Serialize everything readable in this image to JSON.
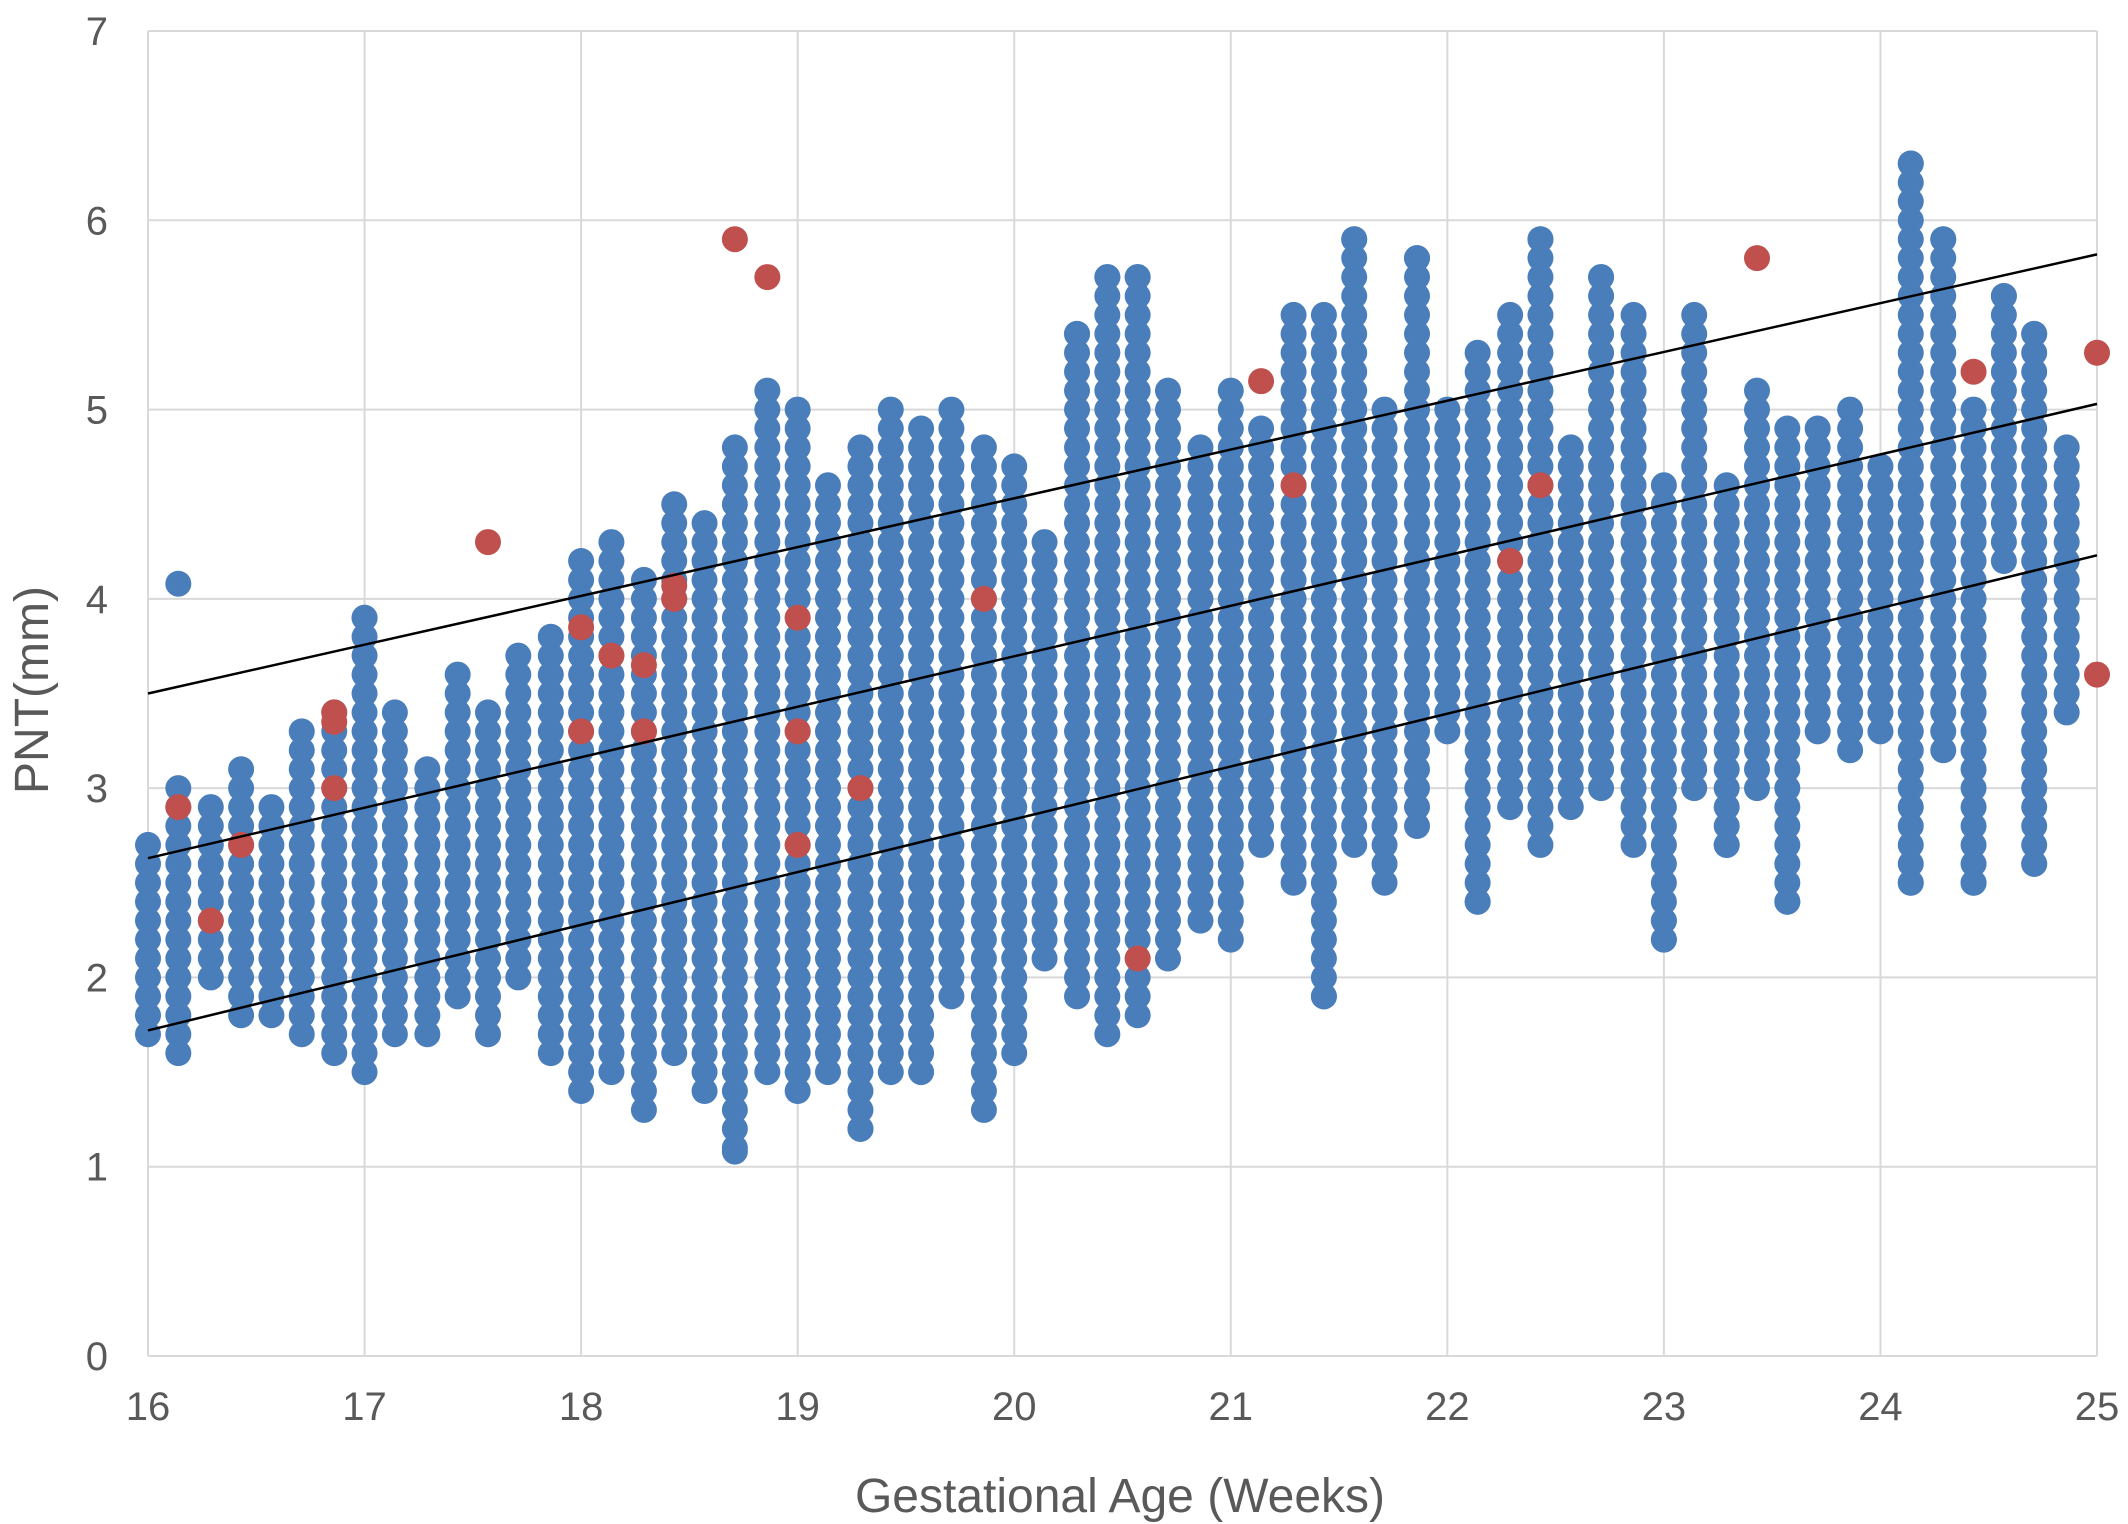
{
  "chart_data": {
    "type": "scatter",
    "title": "",
    "xlabel": "Gestational Age (Weeks)",
    "ylabel": "PNT(mm)",
    "xlim": [
      16,
      25
    ],
    "ylim": [
      0,
      7
    ],
    "xticks": [
      "16",
      "17",
      "18",
      "19",
      "20",
      "21",
      "22",
      "23",
      "24",
      "25"
    ],
    "yticks": [
      "0",
      "1",
      "2",
      "3",
      "4",
      "5",
      "6",
      "7"
    ],
    "grid": true,
    "legend": "none",
    "colors": {
      "main": "#4a7ebb",
      "highlight": "#c0504d",
      "line": "#000000",
      "grid": "#d9d9d9"
    },
    "reference_lines": [
      {
        "x": [
          16,
          25
        ],
        "y": [
          3.5,
          5.82
        ]
      },
      {
        "x": [
          16,
          25
        ],
        "y": [
          2.63,
          5.03
        ]
      },
      {
        "x": [
          16,
          25
        ],
        "y": [
          1.72,
          4.23
        ]
      }
    ],
    "column_ranges": [
      [
        16.0,
        1.7,
        2.7
      ],
      [
        16.14,
        1.6,
        3.0
      ],
      [
        16.29,
        2.0,
        2.9
      ],
      [
        16.43,
        1.8,
        3.1
      ],
      [
        16.57,
        1.8,
        2.9
      ],
      [
        16.71,
        1.7,
        3.3
      ],
      [
        16.86,
        1.6,
        3.4
      ],
      [
        17.0,
        1.5,
        3.9
      ],
      [
        17.14,
        1.7,
        3.4
      ],
      [
        17.29,
        1.7,
        3.1
      ],
      [
        17.43,
        1.9,
        3.6
      ],
      [
        17.57,
        1.7,
        3.4
      ],
      [
        17.71,
        2.0,
        3.7
      ],
      [
        17.86,
        1.6,
        3.8
      ],
      [
        18.0,
        1.4,
        4.2
      ],
      [
        18.14,
        1.5,
        4.3
      ],
      [
        18.29,
        1.3,
        4.1
      ],
      [
        18.43,
        1.6,
        4.5
      ],
      [
        18.57,
        1.4,
        4.4
      ],
      [
        18.71,
        1.1,
        4.8
      ],
      [
        18.86,
        1.5,
        5.1
      ],
      [
        19.0,
        1.4,
        5.0
      ],
      [
        19.14,
        1.5,
        4.6
      ],
      [
        19.29,
        1.2,
        4.8
      ],
      [
        19.43,
        1.5,
        5.0
      ],
      [
        19.57,
        1.5,
        4.9
      ],
      [
        19.71,
        1.9,
        5.0
      ],
      [
        19.86,
        1.3,
        4.8
      ],
      [
        20.0,
        1.6,
        4.7
      ],
      [
        20.14,
        2.1,
        4.3
      ],
      [
        20.29,
        1.9,
        5.4
      ],
      [
        20.43,
        1.7,
        5.7
      ],
      [
        20.57,
        1.8,
        5.7
      ],
      [
        20.71,
        2.1,
        5.1
      ],
      [
        20.86,
        2.3,
        4.8
      ],
      [
        21.0,
        2.2,
        5.1
      ],
      [
        21.14,
        2.7,
        4.9
      ],
      [
        21.29,
        2.5,
        5.5
      ],
      [
        21.43,
        1.9,
        5.5
      ],
      [
        21.57,
        2.7,
        5.9
      ],
      [
        21.71,
        2.5,
        5.0
      ],
      [
        21.86,
        2.8,
        5.8
      ],
      [
        22.0,
        3.3,
        5.0
      ],
      [
        22.14,
        2.4,
        5.3
      ],
      [
        22.29,
        2.9,
        5.5
      ],
      [
        22.43,
        2.7,
        5.9
      ],
      [
        22.57,
        2.9,
        4.8
      ],
      [
        22.71,
        3.0,
        5.7
      ],
      [
        22.86,
        2.7,
        5.5
      ],
      [
        23.0,
        2.2,
        4.6
      ],
      [
        23.14,
        3.0,
        5.5
      ],
      [
        23.29,
        2.7,
        4.6
      ],
      [
        23.43,
        3.0,
        5.1
      ],
      [
        23.57,
        2.4,
        4.9
      ],
      [
        23.71,
        3.3,
        4.9
      ],
      [
        23.86,
        3.2,
        5.0
      ],
      [
        24.0,
        3.3,
        4.7
      ],
      [
        24.14,
        2.5,
        6.3
      ],
      [
        24.29,
        3.2,
        5.9
      ],
      [
        24.43,
        2.5,
        5.0
      ],
      [
        24.57,
        4.2,
        5.6
      ],
      [
        24.71,
        2.6,
        5.4
      ],
      [
        24.86,
        3.4,
        4.8
      ]
    ],
    "extra_points": [
      [
        16.14,
        4.08
      ],
      [
        17.0,
        3.9
      ],
      [
        18.71,
        1.08
      ],
      [
        19.29,
        1.2
      ],
      [
        21.43,
        1.9
      ],
      [
        24.14,
        6.3
      ],
      [
        24.29,
        5.9
      ],
      [
        24.57,
        5.6
      ],
      [
        24.71,
        5.4
      ],
      [
        24.14,
        2.5
      ],
      [
        24.43,
        2.5
      ],
      [
        24.71,
        2.6
      ],
      [
        23.57,
        2.4
      ],
      [
        23.29,
        2.7
      ],
      [
        23.0,
        2.2
      ],
      [
        23.0,
        2.3
      ],
      [
        22.14,
        2.4
      ],
      [
        21.57,
        5.9
      ],
      [
        22.43,
        5.9
      ],
      [
        21.86,
        5.8
      ],
      [
        22.71,
        5.7
      ],
      [
        20.43,
        5.7
      ],
      [
        20.57,
        5.7
      ],
      [
        20.29,
        5.4
      ]
    ],
    "highlight_points": [
      [
        16.14,
        2.9
      ],
      [
        16.29,
        2.3
      ],
      [
        16.43,
        2.7
      ],
      [
        16.86,
        3.0
      ],
      [
        16.86,
        3.35
      ],
      [
        16.86,
        3.4
      ],
      [
        17.57,
        4.3
      ],
      [
        18.0,
        3.3
      ],
      [
        18.0,
        3.85
      ],
      [
        18.14,
        3.7
      ],
      [
        18.29,
        3.3
      ],
      [
        18.29,
        3.65
      ],
      [
        18.43,
        4.0
      ],
      [
        18.43,
        4.07
      ],
      [
        18.71,
        5.9
      ],
      [
        18.86,
        5.7
      ],
      [
        19.0,
        3.9
      ],
      [
        19.0,
        3.3
      ],
      [
        19.0,
        2.7
      ],
      [
        19.29,
        3.0
      ],
      [
        19.86,
        4.0
      ],
      [
        20.57,
        2.1
      ],
      [
        21.14,
        5.15
      ],
      [
        21.29,
        4.6
      ],
      [
        22.29,
        4.2
      ],
      [
        22.43,
        4.6
      ],
      [
        23.43,
        5.8
      ],
      [
        24.43,
        5.2
      ],
      [
        25.0,
        5.3
      ],
      [
        25.0,
        3.6
      ]
    ]
  }
}
